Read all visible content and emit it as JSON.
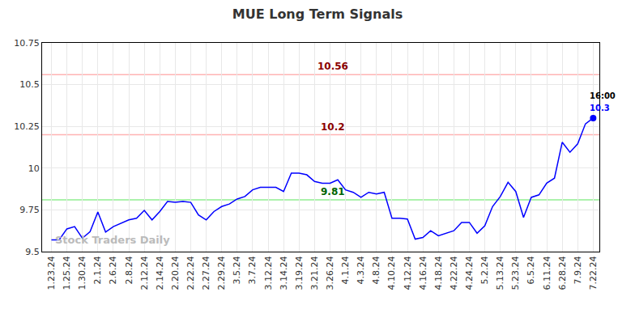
{
  "chart_data": {
    "type": "line",
    "title": "MUE Long Term Signals",
    "categories": [
      "1.23.24",
      null,
      "1.25.24",
      null,
      "1.30.24",
      null,
      "2.1.24",
      null,
      "2.6.24",
      null,
      "2.8.24",
      null,
      "2.12.24",
      null,
      "2.14.24",
      null,
      "2.20.24",
      null,
      "2.22.24",
      null,
      "2.27.24",
      null,
      "2.29.24",
      null,
      "3.5.24",
      null,
      "3.7.24",
      null,
      "3.12.24",
      null,
      "3.14.24",
      null,
      "3.19.24",
      null,
      "3.21.24",
      null,
      "3.26.24",
      null,
      "4.1.24",
      null,
      "4.3.24",
      null,
      "4.8.24",
      null,
      "4.10.24",
      null,
      "4.12.24",
      null,
      "4.16.24",
      null,
      "4.18.24",
      null,
      "4.22.24",
      null,
      "4.24.24",
      null,
      "5.2.24",
      null,
      "5.13.24",
      null,
      "5.23.24",
      null,
      "6.5.24",
      null,
      "6.11.24",
      null,
      "6.28.24",
      null,
      "7.9.24",
      null,
      "7.22.24"
    ],
    "series": [
      {
        "name": "MUE",
        "color": "#0000ff",
        "values": [
          9.57,
          9.57,
          9.636,
          9.65,
          9.58,
          9.62,
          9.737,
          9.617,
          9.65,
          9.67,
          9.69,
          9.7,
          9.747,
          9.69,
          9.74,
          9.8,
          9.795,
          9.8,
          9.795,
          9.72,
          9.69,
          9.74,
          9.77,
          9.785,
          9.815,
          9.83,
          9.87,
          9.885,
          9.885,
          9.885,
          9.86,
          9.97,
          9.97,
          9.96,
          9.92,
          9.91,
          9.91,
          9.93,
          9.87,
          9.855,
          9.825,
          9.855,
          9.845,
          9.855,
          9.7,
          9.7,
          9.695,
          9.575,
          9.585,
          9.625,
          9.595,
          9.61,
          9.625,
          9.675,
          9.675,
          9.61,
          9.655,
          9.77,
          9.83,
          9.915,
          9.86,
          9.705,
          9.825,
          9.84,
          9.91,
          9.94,
          10.155,
          10.095,
          10.145,
          10.265,
          10.3
        ]
      }
    ],
    "levels": [
      {
        "value": 10.56,
        "color": "#ffb3b3",
        "label_color": "#8b0000"
      },
      {
        "value": 10.2,
        "color": "#ffb3b3",
        "label_color": "#8b0000"
      },
      {
        "value": 9.81,
        "color": "#90ee90",
        "label_color": "#006400"
      }
    ],
    "last_point": {
      "time": "16:00",
      "value": 10.3,
      "color": "#0000ff"
    },
    "watermark": "Stock Traders Daily",
    "ylim": [
      9.5,
      10.75
    ],
    "yticks": [
      9.5,
      9.75,
      10,
      10.25,
      10.5,
      10.75
    ],
    "grid": true
  }
}
